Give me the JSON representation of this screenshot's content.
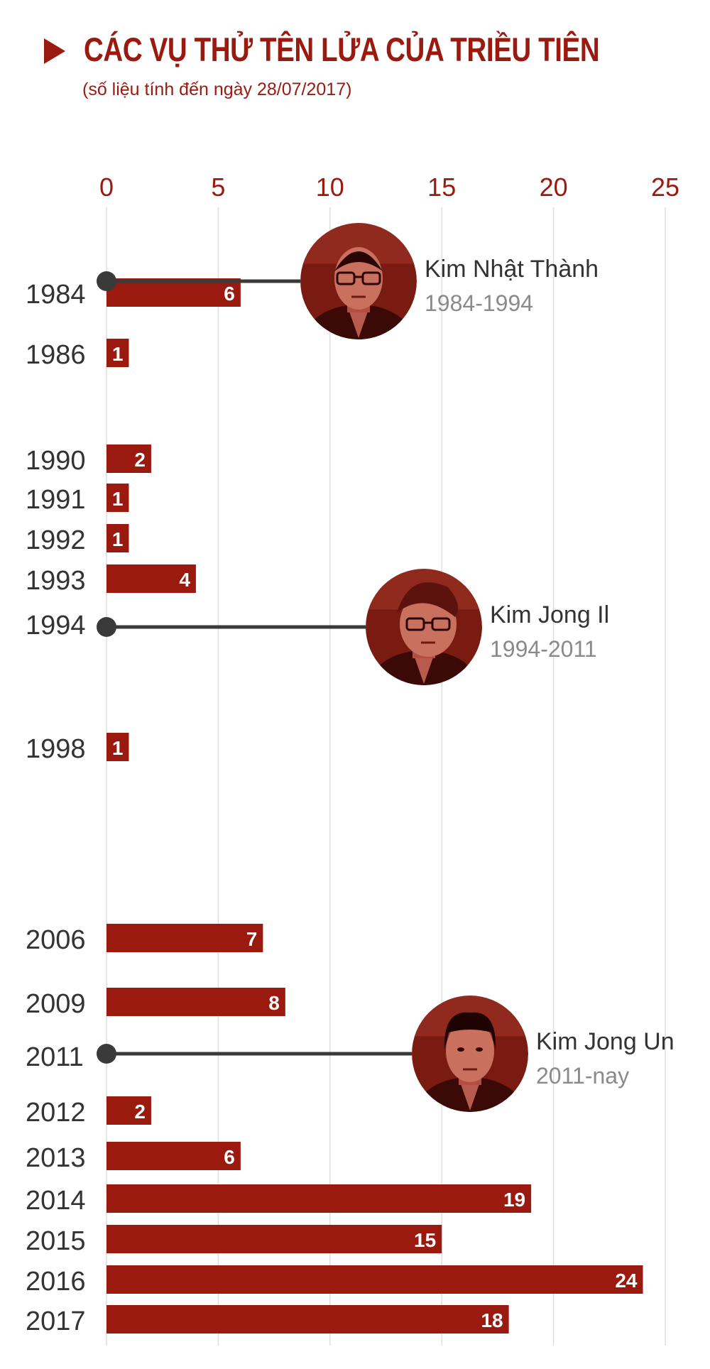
{
  "header": {
    "title": "CÁC VỤ THỬ TÊN LỬA CỦA TRIỀU TIÊN",
    "subtitle": "(số liệu tính đến ngày 28/07/2017)"
  },
  "colors": {
    "bar": "#9b1a10",
    "axis_text": "#9b1a10",
    "year_text": "#333333",
    "leader_line": "#3a3a3a",
    "leader_period": "#8a8a8a",
    "grid": "#dedede"
  },
  "chart_data": {
    "type": "bar",
    "orientation": "horizontal",
    "title": "CÁC VỤ THỬ TÊN LỬA CỦA TRIỀU TIÊN",
    "subtitle": "(số liệu tính đến ngày 28/07/2017)",
    "xlim": [
      0,
      25
    ],
    "xticks": [
      "0",
      "5",
      "10",
      "15",
      "20",
      "25"
    ],
    "grid": true,
    "categories": [
      "1984",
      "1986",
      "1990",
      "1991",
      "1992",
      "1993",
      "1998",
      "2006",
      "2009",
      "2012",
      "2013",
      "2014",
      "2015",
      "2016",
      "2017"
    ],
    "values": [
      6,
      1,
      2,
      1,
      1,
      4,
      1,
      7,
      8,
      2,
      6,
      19,
      15,
      24,
      18
    ],
    "value_labels": [
      "6",
      "1",
      "2",
      "1",
      "1",
      "4",
      "1",
      "7",
      "8",
      "2",
      "6",
      "19",
      "15",
      "24",
      "18"
    ],
    "leaders": [
      {
        "year": "1984",
        "name": "Kim Nhật Thành",
        "period": "1984-1994",
        "icon": "kim-il-sung-portrait-icon"
      },
      {
        "year": "1994",
        "name": "Kim Jong Il",
        "period": "1994-2011",
        "icon": "kim-jong-il-portrait-icon"
      },
      {
        "year": "2011",
        "name": "Kim Jong Un",
        "period": "2011-nay",
        "icon": "kim-jong-un-portrait-icon"
      }
    ]
  }
}
